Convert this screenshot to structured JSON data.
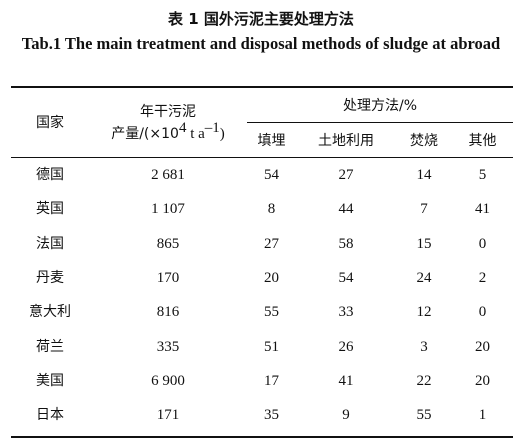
{
  "caption": {
    "chinese": "表 1  国外污泥主要处理方法",
    "english": "Tab.1 The main treatment and disposal methods of sludge at abroad"
  },
  "header": {
    "country": "国家",
    "production_line1": "年干污泥",
    "production_prefix": "产量/(×10",
    "production_exp1": "4",
    "production_mid": " t a",
    "production_exp2": "–1",
    "production_suffix": ")",
    "methods_group": "处理方法/%",
    "landfill": "填埋",
    "land_use": "土地利用",
    "incineration": "焚烧",
    "other": "其他"
  },
  "rows": [
    {
      "country": "德国",
      "production": "2 681",
      "landfill": "54",
      "land_use": "27",
      "incineration": "14",
      "other": "5"
    },
    {
      "country": "英国",
      "production": "1 107",
      "landfill": "8",
      "land_use": "44",
      "incineration": "7",
      "other": "41"
    },
    {
      "country": "法国",
      "production": "865",
      "landfill": "27",
      "land_use": "58",
      "incineration": "15",
      "other": "0"
    },
    {
      "country": "丹麦",
      "production": "170",
      "landfill": "20",
      "land_use": "54",
      "incineration": "24",
      "other": "2"
    },
    {
      "country": "意大利",
      "production": "816",
      "landfill": "55",
      "land_use": "33",
      "incineration": "12",
      "other": "0"
    },
    {
      "country": "荷兰",
      "production": "335",
      "landfill": "51",
      "land_use": "26",
      "incineration": "3",
      "other": "20"
    },
    {
      "country": "美国",
      "production": "6 900",
      "landfill": "17",
      "land_use": "41",
      "incineration": "22",
      "other": "20"
    },
    {
      "country": "日本",
      "production": "171",
      "landfill": "35",
      "land_use": "9",
      "incineration": "55",
      "other": "1"
    }
  ]
}
